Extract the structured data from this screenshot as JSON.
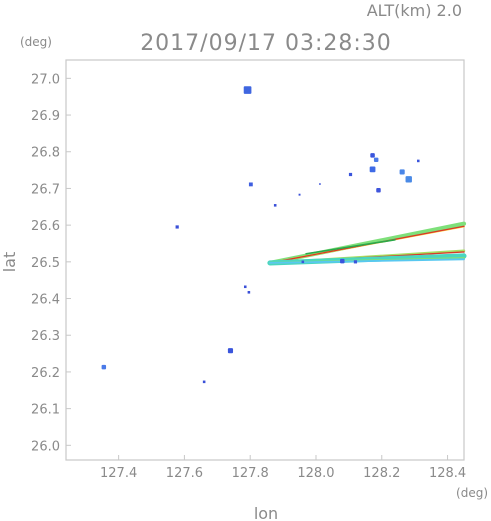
{
  "header": {
    "altitude": "ALT(km)  2.0",
    "timestamp": "2017/09/17  03:28:30"
  },
  "chart_data": {
    "type": "scatter",
    "xlabel": "lon",
    "ylabel": "lat",
    "x_unit": "(deg)",
    "y_unit": "(deg)",
    "xlim": [
      127.24,
      128.45
    ],
    "ylim": [
      25.96,
      27.05
    ],
    "xticks": [
      127.4,
      127.6,
      127.8,
      128.0,
      128.2,
      128.4
    ],
    "yticks": [
      26.0,
      26.1,
      26.2,
      26.3,
      26.4,
      26.5,
      26.6,
      26.7,
      26.8,
      26.9,
      27.0
    ],
    "grid": false,
    "echoes": [
      {
        "x": 127.792,
        "y": 26.968,
        "size": 2.4,
        "color": "#3f66e0"
      },
      {
        "x": 127.802,
        "y": 26.711,
        "size": 1.2,
        "color": "#3f5fe0"
      },
      {
        "x": 127.876,
        "y": 26.654,
        "size": 0.8,
        "color": "#3a50d8"
      },
      {
        "x": 127.95,
        "y": 26.683,
        "size": 0.6,
        "color": "#3a50d8"
      },
      {
        "x": 128.012,
        "y": 26.712,
        "size": 0.5,
        "color": "#3a50d8"
      },
      {
        "x": 128.105,
        "y": 26.738,
        "size": 1.0,
        "color": "#3a55dc"
      },
      {
        "x": 128.172,
        "y": 26.79,
        "size": 1.4,
        "color": "#3a55dc"
      },
      {
        "x": 128.183,
        "y": 26.778,
        "size": 1.4,
        "color": "#4a7ae8"
      },
      {
        "x": 128.172,
        "y": 26.752,
        "size": 1.8,
        "color": "#3e6ae6"
      },
      {
        "x": 128.19,
        "y": 26.695,
        "size": 1.4,
        "color": "#3f55dc"
      },
      {
        "x": 128.262,
        "y": 26.745,
        "size": 1.6,
        "color": "#4a86e8"
      },
      {
        "x": 128.282,
        "y": 26.725,
        "size": 2.0,
        "color": "#4a8ae6"
      },
      {
        "x": 128.311,
        "y": 26.775,
        "size": 0.8,
        "color": "#3a55dc"
      },
      {
        "x": 127.578,
        "y": 26.595,
        "size": 1.0,
        "color": "#3a50d8"
      },
      {
        "x": 127.785,
        "y": 26.432,
        "size": 0.8,
        "color": "#3a50d8"
      },
      {
        "x": 127.796,
        "y": 26.417,
        "size": 0.8,
        "color": "#3a50d8"
      },
      {
        "x": 127.74,
        "y": 26.258,
        "size": 1.6,
        "color": "#3a55dc"
      },
      {
        "x": 127.66,
        "y": 26.173,
        "size": 0.8,
        "color": "#3a50d8"
      },
      {
        "x": 127.355,
        "y": 26.213,
        "size": 1.4,
        "color": "#4a7ae8"
      },
      {
        "x": 128.08,
        "y": 26.502,
        "size": 1.4,
        "color": "#3a55dc"
      },
      {
        "x": 128.12,
        "y": 26.5,
        "size": 1.0,
        "color": "#3a55dc"
      },
      {
        "x": 127.96,
        "y": 26.5,
        "size": 0.8,
        "color": "#3a55dc"
      }
    ],
    "bands": [
      {
        "from": [
          127.86,
          26.497
        ],
        "to": [
          128.45,
          26.604
        ],
        "width": 2.6,
        "color": "#7ee07a"
      },
      {
        "from": [
          127.86,
          26.497
        ],
        "to": [
          128.45,
          26.596
        ],
        "width": 1.0,
        "color": "#ffd23a"
      },
      {
        "from": [
          127.86,
          26.497
        ],
        "to": [
          128.45,
          26.597
        ],
        "width": 0.8,
        "color": "#d8382a"
      },
      {
        "from": [
          127.86,
          26.497
        ],
        "to": [
          128.45,
          26.53
        ],
        "width": 1.6,
        "color": "#a8e060"
      },
      {
        "from": [
          127.86,
          26.497
        ],
        "to": [
          128.45,
          26.527
        ],
        "width": 0.8,
        "color": "#d8382a"
      },
      {
        "from": [
          127.86,
          26.497
        ],
        "to": [
          128.45,
          26.516
        ],
        "width": 3.2,
        "color": "#4ad6c0"
      },
      {
        "from": [
          127.86,
          26.497
        ],
        "to": [
          128.45,
          26.51
        ],
        "width": 1.4,
        "color": "#7ee07a"
      },
      {
        "from": [
          127.86,
          26.497
        ],
        "to": [
          128.45,
          26.507
        ],
        "width": 1.2,
        "color": "#58c8f0"
      },
      {
        "from": [
          127.97,
          26.522
        ],
        "to": [
          128.24,
          26.56
        ],
        "width": 1.0,
        "color": "#2aa84a"
      }
    ]
  }
}
